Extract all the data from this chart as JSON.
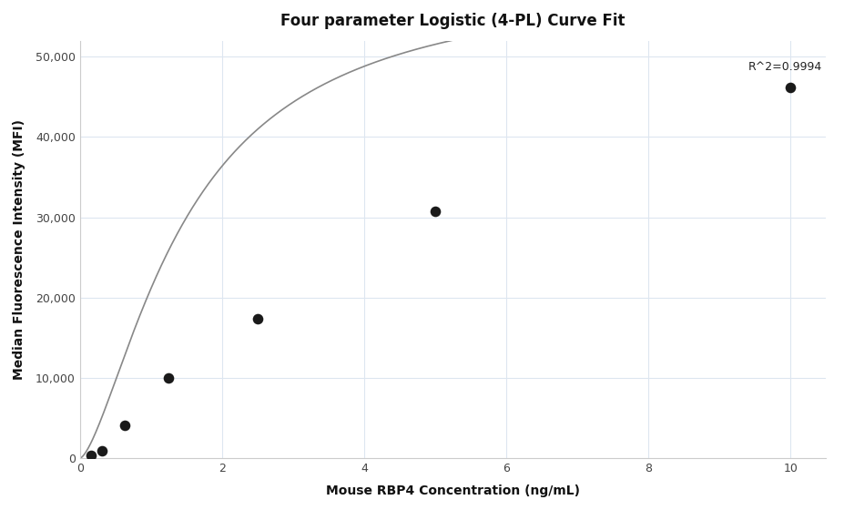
{
  "title": "Four parameter Logistic (4-PL) Curve Fit",
  "xlabel": "Mouse RBP4 Concentration (ng/mL)",
  "ylabel": "Median Fluorescence Intensity (MFI)",
  "scatter_x": [
    0.156,
    0.313,
    0.625,
    1.25,
    2.5,
    5.0,
    10.0
  ],
  "scatter_y": [
    380,
    870,
    4150,
    10000,
    17400,
    30700,
    46200
  ],
  "xlim": [
    0,
    10.5
  ],
  "ylim": [
    0,
    52000
  ],
  "yticks": [
    0,
    10000,
    20000,
    30000,
    40000,
    50000
  ],
  "ytick_labels": [
    "0",
    "10,000",
    "20,000",
    "30,000",
    "40,000",
    "50,000"
  ],
  "xticks": [
    0,
    2,
    4,
    6,
    8,
    10
  ],
  "r_squared": "R^2=0.9994",
  "r_squared_x": 9.4,
  "r_squared_y": 49500,
  "scatter_color": "#1a1a1a",
  "line_color": "#888888",
  "grid_color": "#dde6f0",
  "bg_color": "#ffffff",
  "spine_color": "#cccccc",
  "title_fontsize": 12,
  "label_fontsize": 10,
  "tick_fontsize": 9,
  "annotation_fontsize": 9,
  "scatter_size": 70,
  "line_width": 1.2
}
